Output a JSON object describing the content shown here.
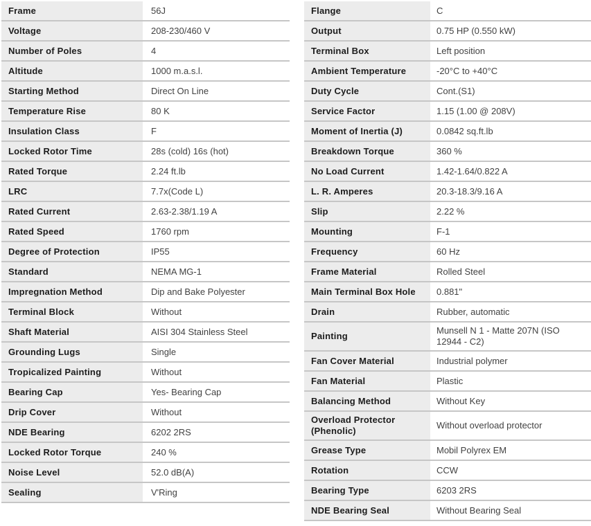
{
  "colors": {
    "label_background": "#ececec",
    "row_border": "#c6c6c6",
    "label_text": "#1c1c1c",
    "value_text": "#414141",
    "page_background": "#ffffff"
  },
  "left_table": {
    "rows": [
      {
        "label": "Frame",
        "value": "56J"
      },
      {
        "label": "Voltage",
        "value": "208-230/460 V"
      },
      {
        "label": "Number of Poles",
        "value": "4"
      },
      {
        "label": "Altitude",
        "value": "1000 m.a.s.l."
      },
      {
        "label": "Starting Method",
        "value": "Direct On Line"
      },
      {
        "label": "Temperature Rise",
        "value": "80 K"
      },
      {
        "label": "Insulation Class",
        "value": "F"
      },
      {
        "label": "Locked Rotor Time",
        "value": "28s (cold) 16s (hot)"
      },
      {
        "label": "Rated Torque",
        "value": "2.24 ft.lb"
      },
      {
        "label": "LRC",
        "value": "7.7x(Code L)"
      },
      {
        "label": "Rated Current",
        "value": "2.63-2.38/1.19 A"
      },
      {
        "label": "Rated Speed",
        "value": "1760 rpm"
      },
      {
        "label": "Degree of Protection",
        "value": "IP55"
      },
      {
        "label": "Standard",
        "value": "NEMA MG-1"
      },
      {
        "label": "Impregnation Method",
        "value": "Dip and Bake Polyester"
      },
      {
        "label": "Terminal Block",
        "value": "Without"
      },
      {
        "label": "Shaft Material",
        "value": "AISI 304 Stainless Steel"
      },
      {
        "label": "Grounding Lugs",
        "value": "Single"
      },
      {
        "label": "Tropicalized Painting",
        "value": "Without"
      },
      {
        "label": "Bearing Cap",
        "value": "Yes- Bearing Cap"
      },
      {
        "label": "Drip Cover",
        "value": "Without"
      },
      {
        "label": "NDE Bearing",
        "value": "6202 2RS"
      },
      {
        "label": "Locked Rotor Torque",
        "value": "240 %"
      },
      {
        "label": "Noise Level",
        "value": "52.0 dB(A)"
      },
      {
        "label": "Sealing",
        "value": "V'Ring"
      }
    ]
  },
  "right_table": {
    "rows": [
      {
        "label": "Flange",
        "value": "C"
      },
      {
        "label": "Output",
        "value": "0.75 HP (0.550 kW)"
      },
      {
        "label": "Terminal Box",
        "value": "Left position"
      },
      {
        "label": "Ambient Temperature",
        "value": "-20°C to +40°C"
      },
      {
        "label": "Duty Cycle",
        "value": "Cont.(S1)"
      },
      {
        "label": "Service Factor",
        "value": "1.15 (1.00 @ 208V)"
      },
      {
        "label": "Moment of Inertia (J)",
        "value": "0.0842 sq.ft.lb"
      },
      {
        "label": "Breakdown Torque",
        "value": "360 %"
      },
      {
        "label": "No Load Current",
        "value": "1.42-1.64/0.822 A"
      },
      {
        "label": "L. R. Amperes",
        "value": "20.3-18.3/9.16 A"
      },
      {
        "label": "Slip",
        "value": "2.22 %"
      },
      {
        "label": "Mounting",
        "value": "F-1"
      },
      {
        "label": "Frequency",
        "value": "60 Hz"
      },
      {
        "label": "Frame Material",
        "value": "Rolled Steel"
      },
      {
        "label": "Main Terminal Box Hole",
        "value": "0.881\""
      },
      {
        "label": "Drain",
        "value": "Rubber, automatic"
      },
      {
        "label": "Painting",
        "value": "Munsell N 1 - Matte 207N (ISO 12944 - C2)"
      },
      {
        "label": "Fan Cover Material",
        "value": "Industrial polymer"
      },
      {
        "label": "Fan Material",
        "value": "Plastic"
      },
      {
        "label": "Balancing Method",
        "value": "Without Key"
      },
      {
        "label": "Overload Protector (Phenolic)",
        "value": "Without overload protector"
      },
      {
        "label": "Grease Type",
        "value": "Mobil Polyrex EM"
      },
      {
        "label": "Rotation",
        "value": "CCW"
      },
      {
        "label": "Bearing Type",
        "value": "6203 2RS"
      },
      {
        "label": "NDE Bearing Seal",
        "value": "Without Bearing Seal"
      }
    ]
  }
}
